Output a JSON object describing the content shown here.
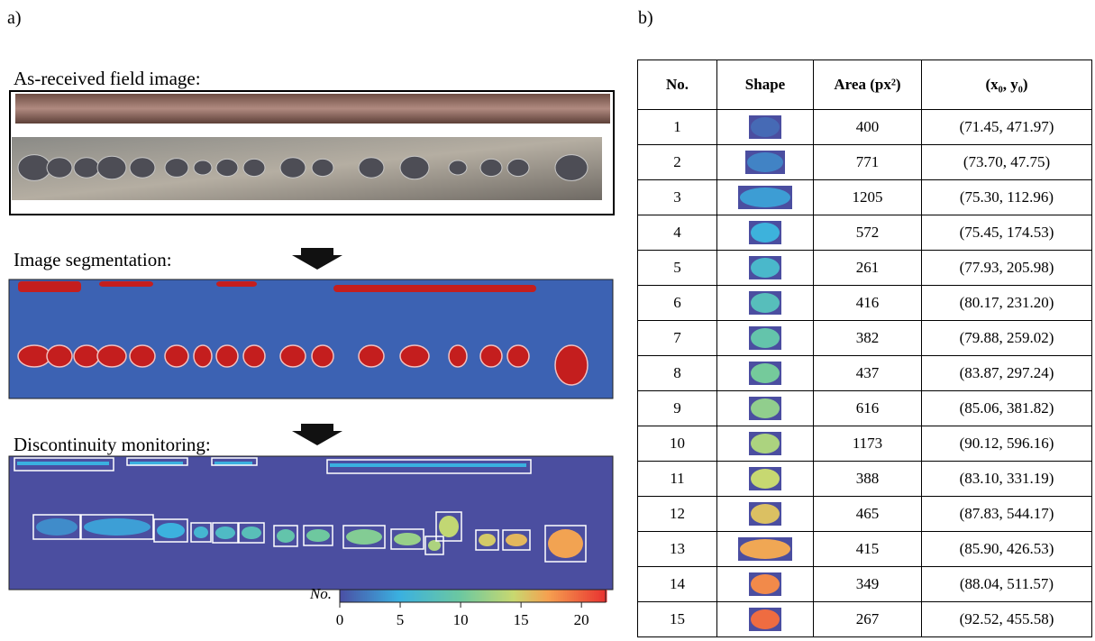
{
  "panel_a": {
    "label": "a)",
    "sections": [
      {
        "title": "As-received field image:"
      },
      {
        "title": "Image segmentation:"
      },
      {
        "title": "Discontinuity monitoring:"
      }
    ],
    "colorbar": {
      "label": "No.",
      "lim": [
        0,
        22
      ],
      "ticks": [
        0,
        5,
        10,
        15,
        20
      ]
    }
  },
  "panel_b": {
    "label": "b)",
    "table": {
      "header": [
        "No.",
        "Shape",
        "Area (px²)",
        "(x₀, y₀)"
      ],
      "rows": [
        [
          "1",
          "400",
          "(71.45, 471.97)"
        ],
        [
          "2",
          "771",
          "(73.70, 47.75)"
        ],
        [
          "3",
          "1205",
          "(75.30, 112.96)"
        ],
        [
          "4",
          "572",
          "(75.45, 174.53)"
        ],
        [
          "5",
          "261",
          "(77.93, 205.98)"
        ],
        [
          "6",
          "416",
          "(80.17, 231.20)"
        ],
        [
          "7",
          "382",
          "(79.88, 259.02)"
        ],
        [
          "8",
          "437",
          "(83.87, 297.24)"
        ],
        [
          "9",
          "616",
          "(85.06, 381.82)"
        ],
        [
          "10",
          "1173",
          "(90.12, 596.16)"
        ],
        [
          "11",
          "388",
          "(83.10, 331.19)"
        ],
        [
          "12",
          "465",
          "(87.83, 544.17)"
        ],
        [
          "13",
          "415",
          "(85.90, 426.53)"
        ],
        [
          "14",
          "349",
          "(88.04, 511.57)"
        ],
        [
          "15",
          "267",
          "(92.52, 455.58)"
        ]
      ]
    }
  }
}
